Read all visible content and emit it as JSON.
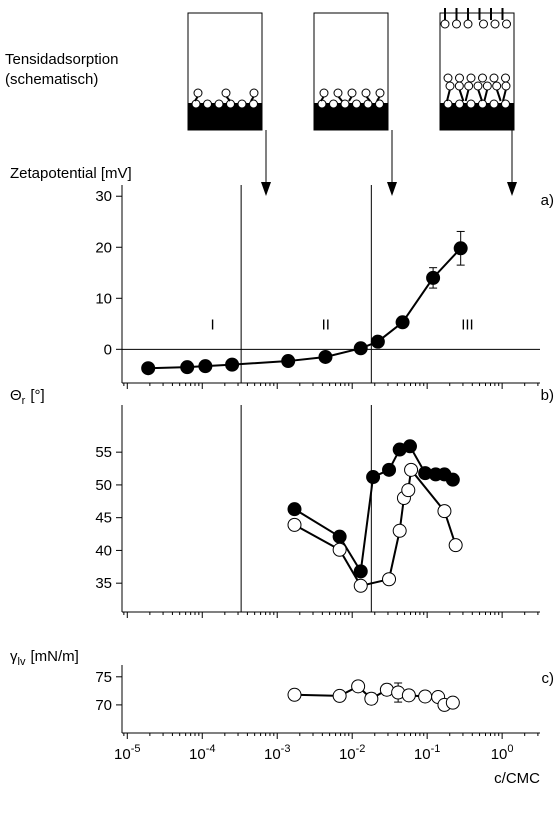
{
  "schematic": {
    "title": "Tensidadsorption",
    "subtitle": "(schematisch)"
  },
  "chart_data": [
    {
      "type": "line",
      "tag": "a)",
      "ylabel": "Zetapotential [mV]",
      "xscale": "log",
      "xlim": [
        8.5e-06,
        3.2
      ],
      "xticks": [
        1e-05,
        0.0001,
        0.001,
        0.01,
        0.1,
        1
      ],
      "minor_ticks": true,
      "ylim": [
        -6.6,
        32.2
      ],
      "yticks": [
        0,
        10,
        20,
        30
      ],
      "zero_line": true,
      "vlines": [
        0.00033,
        0.018
      ],
      "annotations": [
        "I",
        "II",
        "III"
      ],
      "series": [
        {
          "color": "#000000",
          "marker_fill": "#000000",
          "x": [
            1.9e-05,
            6.3e-05,
            0.00011,
            0.00025,
            0.0014,
            0.0044,
            0.013,
            0.022,
            0.047,
            0.12,
            0.28
          ],
          "values": [
            -3.7,
            -3.5,
            -3.3,
            -3.0,
            -2.3,
            -1.5,
            0.2,
            1.5,
            5.3,
            14,
            19.8
          ],
          "errors": [
            null,
            null,
            null,
            null,
            null,
            null,
            null,
            null,
            null,
            2,
            3.3
          ]
        }
      ]
    },
    {
      "type": "line",
      "tag": "b)",
      "ylabel": "Θ",
      "ylabel_sub": "r",
      "ylabel_unit": "[°]",
      "xscale": "log",
      "xlim": [
        8.5e-06,
        3.2
      ],
      "xticks": [
        1e-05,
        0.0001,
        0.001,
        0.01,
        0.1,
        1
      ],
      "minor_ticks": true,
      "ylim": [
        30.6,
        62.2
      ],
      "yticks": [
        35,
        40,
        45,
        50,
        55
      ],
      "vlines": [
        0.00033,
        0.018
      ],
      "series": [
        {
          "color": "#000000",
          "marker_fill": "#000000",
          "x": [
            0.0017,
            0.0068,
            0.013,
            0.019,
            0.031,
            0.043,
            0.059,
            0.094,
            0.13,
            0.17,
            0.22
          ],
          "values": [
            46.3,
            42.1,
            36.8,
            51.2,
            52.3,
            55.4,
            55.9,
            51.8,
            51.6,
            51.6,
            50.8
          ]
        },
        {
          "color": "#000000",
          "marker_fill": "#ffffff",
          "x": [
            0.0017,
            0.0068,
            0.013,
            0.031,
            0.043,
            0.049,
            0.056,
            0.061,
            0.17,
            0.24
          ],
          "values": [
            43.9,
            40.1,
            34.6,
            35.6,
            43.0,
            48.0,
            49.2,
            52.3,
            46.0,
            40.8
          ]
        }
      ]
    },
    {
      "type": "line",
      "tag": "c)",
      "ylabel": "γ",
      "ylabel_sub": "lv",
      "ylabel_unit": "[mN/m]",
      "xscale": "log",
      "xlabel": "c/CMC",
      "xlim": [
        8.5e-06,
        3.2
      ],
      "xticks": [
        {
          "value": 1e-05,
          "label": "10",
          "exponent": "-5"
        },
        {
          "value": 0.0001,
          "label": "10",
          "exponent": "-4"
        },
        {
          "value": 0.001,
          "label": "10",
          "exponent": "-3"
        },
        {
          "value": 0.01,
          "label": "10",
          "exponent": "-2"
        },
        {
          "value": 0.1,
          "label": "10",
          "exponent": "-1"
        },
        {
          "value": 1,
          "label": "10",
          "exponent": "0"
        }
      ],
      "minor_ticks": true,
      "ylim": [
        65,
        77.1
      ],
      "yticks": [
        70,
        75
      ],
      "series": [
        {
          "color": "#000000",
          "marker_fill": "#ffffff",
          "x": [
            0.0017,
            0.0068,
            0.012,
            0.018,
            0.029,
            0.041,
            0.057,
            0.094,
            0.14,
            0.17,
            0.22
          ],
          "values": [
            71.8,
            71.6,
            73.3,
            71.1,
            72.7,
            72.2,
            71.7,
            71.5,
            71.4,
            70.0,
            70.4
          ],
          "errors": [
            null,
            null,
            null,
            1.0,
            1.0,
            1.7,
            0.8,
            null,
            null,
            null,
            null
          ]
        }
      ]
    }
  ]
}
